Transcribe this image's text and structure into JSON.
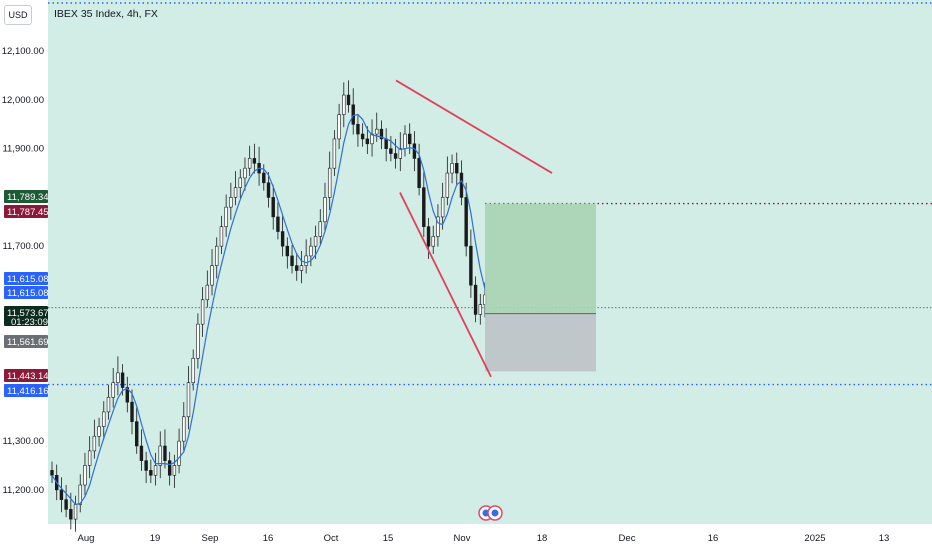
{
  "header": {
    "currency_button": "USD",
    "symbol_title": "IBEX 35 Index, 4h, FX"
  },
  "colors": {
    "plot_bg": "#d2ede6",
    "candle_up": "#1a1a1a",
    "candle_down": "#1a1a1a",
    "ma_line": "#2f6fd6",
    "trendline": "#e0405a",
    "profit_zone": "#a9d3b4",
    "loss_zone": "#bec2c7",
    "blue_dotted": "#2962ff",
    "red_dotted": "#8b1a3a"
  },
  "chart_data": {
    "type": "candlestick",
    "symbol": "IBEX 35 Index",
    "timeframe": "4h",
    "source": "FX",
    "ylim": [
      11130,
      12205
    ],
    "y_ticks": [
      {
        "value": 12100,
        "label": "12,100.00"
      },
      {
        "value": 12000,
        "label": "12,000.00"
      },
      {
        "value": 11900,
        "label": "11,900.00"
      },
      {
        "value": 11700,
        "label": "11,700.00"
      },
      {
        "value": 11300,
        "label": "11,300.00"
      },
      {
        "value": 11200,
        "label": "11,200.00"
      }
    ],
    "x_ticks": [
      "Aug",
      "19",
      "Sep",
      "16",
      "Oct",
      "15",
      "Nov",
      "18",
      "Dec",
      "16",
      "2025",
      "13"
    ],
    "price_tags": [
      {
        "value": 11789.34,
        "label": "11,789.34",
        "color": "#1e5a34"
      },
      {
        "value": 11787.45,
        "label": "11,787.45",
        "color": "#8b1a3a"
      },
      {
        "value": 11615.08,
        "label": "11,615.08",
        "color": "#2962ff"
      },
      {
        "value": 11615.08,
        "label": "11,615.08",
        "color": "#2962ff"
      },
      {
        "value": 11573.67,
        "label": "11,573.67",
        "color": "#0d2b1e",
        "sub": "01:23:09"
      },
      {
        "value": 11561.69,
        "label": "11,561.69",
        "color": "#6b6f75"
      },
      {
        "value": 11443.14,
        "label": "11,443.14",
        "color": "#8b1a3a"
      },
      {
        "value": 11416.16,
        "label": "11,416.16",
        "color": "#2962ff"
      }
    ],
    "horizontal_levels": [
      {
        "value": 11787.45,
        "style": "dotted",
        "color": "#8b1a3a"
      },
      {
        "value": 11416.16,
        "style": "dotted",
        "color": "#2962ff"
      },
      {
        "value": 12205,
        "style": "dotted",
        "color": "#2962ff"
      },
      {
        "value": 11573.67,
        "style": "dotted",
        "color": "#37474f"
      }
    ],
    "position_tool": {
      "entry": 11561.69,
      "target": 11787.45,
      "stop": 11443.14
    },
    "trendlines": [
      {
        "name": "upper",
        "from": {
          "date": "Oct 17",
          "price": 12040
        },
        "to": {
          "date": "Nov 15",
          "price": 11850
        }
      },
      {
        "name": "lower",
        "from": {
          "date": "Oct 18",
          "price": 11810
        },
        "to": {
          "date": "Nov 9",
          "price": 11432
        }
      }
    ],
    "series": [
      {
        "kind": "candles",
        "note": "approx. closes of 4h bars",
        "closes": [
          11230,
          11200,
          11180,
          11160,
          11140,
          11170,
          11210,
          11250,
          11280,
          11310,
          11330,
          11360,
          11390,
          11420,
          11440,
          11410,
          11380,
          11340,
          11290,
          11260,
          11240,
          11230,
          11250,
          11290,
          11260,
          11230,
          11250,
          11300,
          11350,
          11420,
          11470,
          11540,
          11590,
          11620,
          11660,
          11700,
          11740,
          11780,
          11800,
          11820,
          11840,
          11860,
          11880,
          11870,
          11850,
          11830,
          11800,
          11760,
          11730,
          11700,
          11680,
          11660,
          11650,
          11660,
          11680,
          11700,
          11720,
          11750,
          11800,
          11860,
          11920,
          11970,
          12010,
          11990,
          11950,
          11930,
          11920,
          11910,
          11930,
          11940,
          11920,
          11900,
          11890,
          11880,
          11900,
          11930,
          11910,
          11880,
          11820,
          11740,
          11700,
          11720,
          11760,
          11800,
          11850,
          11870,
          11850,
          11800,
          11700,
          11620,
          11560,
          11580,
          11600
        ]
      },
      {
        "kind": "moving-average",
        "color": "#2f6fd6"
      }
    ]
  }
}
